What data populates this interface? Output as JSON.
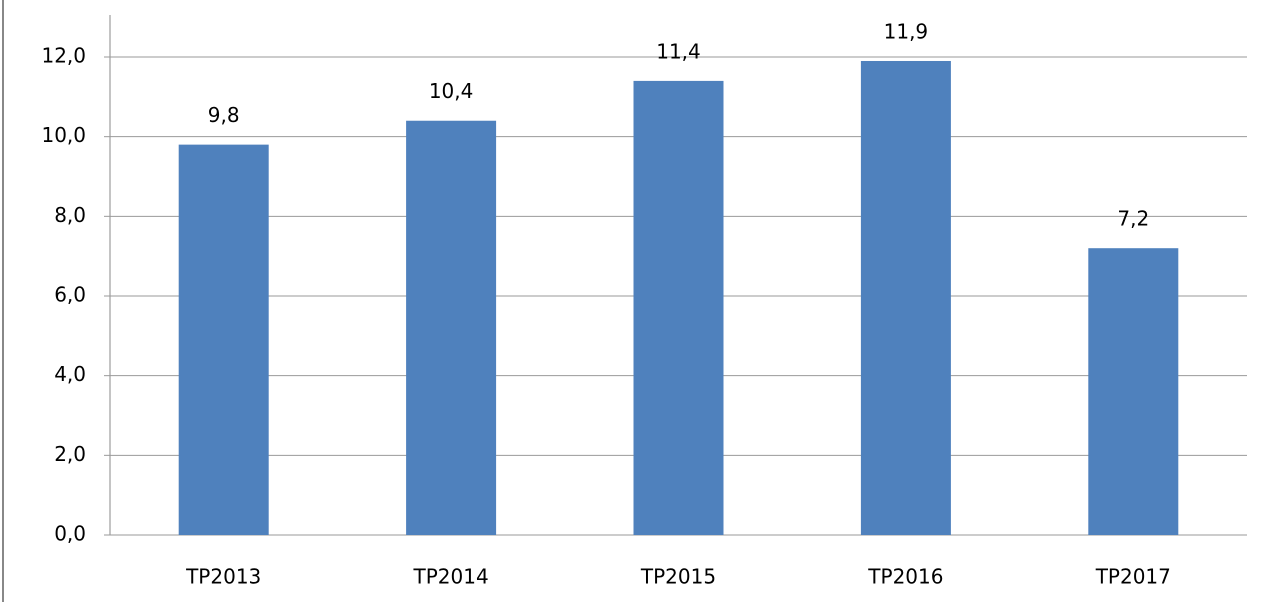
{
  "chart_data": {
    "type": "bar",
    "categories": [
      "TP2013",
      "TP2014",
      "TP2015",
      "TP2016",
      "TP2017"
    ],
    "values": [
      9.8,
      10.4,
      11.4,
      11.9,
      7.2
    ],
    "value_labels": [
      "9,8",
      "10,4",
      "11,4",
      "11,9",
      "7,2"
    ],
    "color": "#4f81bd",
    "ylim": [
      0,
      12
    ],
    "yticks": [
      {
        "value": 0,
        "label": "0,0"
      },
      {
        "value": 2,
        "label": "2,0"
      },
      {
        "value": 4,
        "label": "4,0"
      },
      {
        "value": 6,
        "label": "6,0"
      },
      {
        "value": 8,
        "label": "8,0"
      },
      {
        "value": 10,
        "label": "10,0"
      },
      {
        "value": 12,
        "label": "12,0"
      }
    ],
    "grid": true
  }
}
